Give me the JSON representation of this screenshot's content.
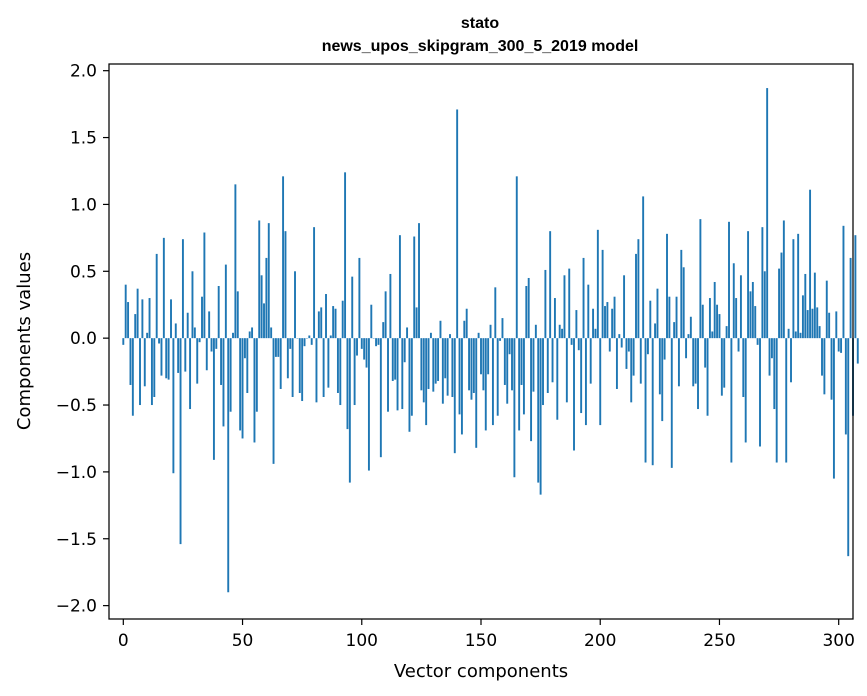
{
  "chart_data": {
    "type": "bar",
    "title": "stato",
    "subtitle": "news_upos_skipgram_300_5_2019 model",
    "xlabel": "Vector components",
    "ylabel": "Components values",
    "xlim": [
      -6,
      306
    ],
    "ylim": [
      -2.1,
      2.05
    ],
    "xticks": [
      0,
      50,
      100,
      150,
      200,
      250,
      300
    ],
    "xtick_labels": [
      "0",
      "50",
      "100",
      "150",
      "200",
      "250",
      "300"
    ],
    "yticks": [
      2.0,
      1.5,
      1.0,
      0.5,
      0.0,
      -0.5,
      -1.0,
      -1.5,
      -2.0
    ],
    "ytick_labels": [
      "2.0",
      "1.5",
      "1.0",
      "0.5",
      "0.0",
      "−0.5",
      "−1.0",
      "−1.5",
      "−2.0"
    ],
    "grid": false,
    "color": "#1f77b4",
    "values": [
      -0.05,
      0.4,
      0.27,
      -0.35,
      -0.58,
      0.18,
      0.37,
      -0.5,
      0.29,
      -0.36,
      0.04,
      0.3,
      -0.5,
      -0.44,
      0.63,
      -0.04,
      -0.28,
      0.75,
      -0.3,
      -0.31,
      0.29,
      -1.01,
      0.11,
      -0.26,
      -1.54,
      0.74,
      -0.25,
      0.19,
      -0.53,
      0.5,
      0.08,
      -0.34,
      -0.03,
      0.31,
      0.79,
      -0.24,
      0.2,
      -0.1,
      -0.91,
      -0.08,
      0.39,
      -0.35,
      -0.66,
      0.55,
      -1.9,
      -0.55,
      0.04,
      1.15,
      0.35,
      -0.69,
      -0.75,
      -0.15,
      -0.41,
      0.05,
      0.08,
      -0.78,
      -0.55,
      0.88,
      0.47,
      0.26,
      0.6,
      0.86,
      0.08,
      -0.94,
      -0.14,
      -0.14,
      -0.38,
      1.21,
      0.8,
      -0.3,
      -0.08,
      -0.44,
      0.5,
      0.0,
      -0.41,
      -0.47,
      -0.06,
      0.0,
      0.02,
      -0.05,
      0.83,
      -0.48,
      0.2,
      0.23,
      -0.44,
      0.33,
      -0.37,
      0.02,
      0.24,
      0.22,
      -0.41,
      -0.5,
      0.28,
      1.24,
      -0.68,
      -1.08,
      0.46,
      -0.5,
      -0.13,
      0.6,
      -0.08,
      -0.16,
      -0.22,
      -0.99,
      0.25,
      0.0,
      -0.06,
      -0.05,
      -0.89,
      0.12,
      0.35,
      -0.55,
      0.48,
      -0.32,
      -0.31,
      -0.54,
      0.77,
      -0.53,
      -0.18,
      0.08,
      -0.7,
      -0.58,
      0.76,
      0.23,
      0.86,
      -0.39,
      -0.48,
      -0.65,
      -0.38,
      0.04,
      -0.4,
      -0.34,
      -0.32,
      0.13,
      -0.49,
      -0.3,
      -0.43,
      0.03,
      -0.44,
      -0.86,
      1.71,
      -0.57,
      -0.72,
      0.13,
      0.22,
      -0.39,
      -0.46,
      -0.41,
      -0.82,
      0.04,
      -0.27,
      -0.39,
      -0.69,
      -0.27,
      0.1,
      -0.65,
      0.38,
      -0.58,
      -0.02,
      0.15,
      -0.35,
      -0.49,
      -0.12,
      -0.39,
      -1.04,
      1.21,
      -0.69,
      -0.35,
      -0.57,
      0.39,
      0.45,
      -0.77,
      -0.4,
      0.1,
      -1.08,
      -1.17,
      -0.5,
      0.51,
      -0.41,
      0.8,
      -0.33,
      0.3,
      -0.61,
      0.1,
      0.07,
      0.47,
      -0.48,
      0.52,
      -0.05,
      -0.84,
      0.21,
      -0.09,
      -0.56,
      0.6,
      -0.65,
      0.4,
      -0.34,
      0.22,
      0.07,
      0.81,
      -0.65,
      0.66,
      0.24,
      0.27,
      -0.1,
      0.22,
      0.31,
      -0.38,
      0.03,
      -0.07,
      0.47,
      -0.23,
      -0.1,
      -0.48,
      -0.28,
      0.63,
      0.74,
      -0.34,
      1.06,
      -0.93,
      -0.12,
      0.28,
      -0.95,
      0.11,
      0.37,
      -0.42,
      -0.62,
      -0.16,
      0.78,
      0.31,
      -0.97,
      0.12,
      0.31,
      -0.36,
      0.66,
      0.53,
      -0.15,
      0.03,
      0.16,
      -0.36,
      -0.34,
      -0.53,
      0.89,
      0.25,
      -0.22,
      -0.58,
      0.3,
      0.05,
      0.42,
      0.25,
      0.18,
      -0.43,
      -0.37,
      0.09,
      0.87,
      -0.93,
      0.56,
      0.3,
      -0.1,
      0.47,
      -0.44,
      -0.78,
      0.8,
      0.35,
      0.42,
      0.24,
      -0.05,
      -0.81,
      0.83,
      0.5,
      1.87,
      -0.28,
      -0.15,
      -0.53,
      -0.93,
      0.52,
      0.64,
      0.88,
      -0.93,
      0.07,
      -0.33,
      0.74,
      0.05,
      0.78,
      0.04,
      0.32,
      0.48,
      0.21,
      1.11,
      0.22,
      0.49,
      0.23,
      0.09,
      -0.28,
      -0.42,
      0.43,
      0.19,
      -0.46,
      -1.05,
      0.2,
      -0.1,
      -0.11,
      0.84,
      -0.72,
      -1.63,
      0.6,
      -0.58,
      0.77,
      -0.19
    ]
  }
}
